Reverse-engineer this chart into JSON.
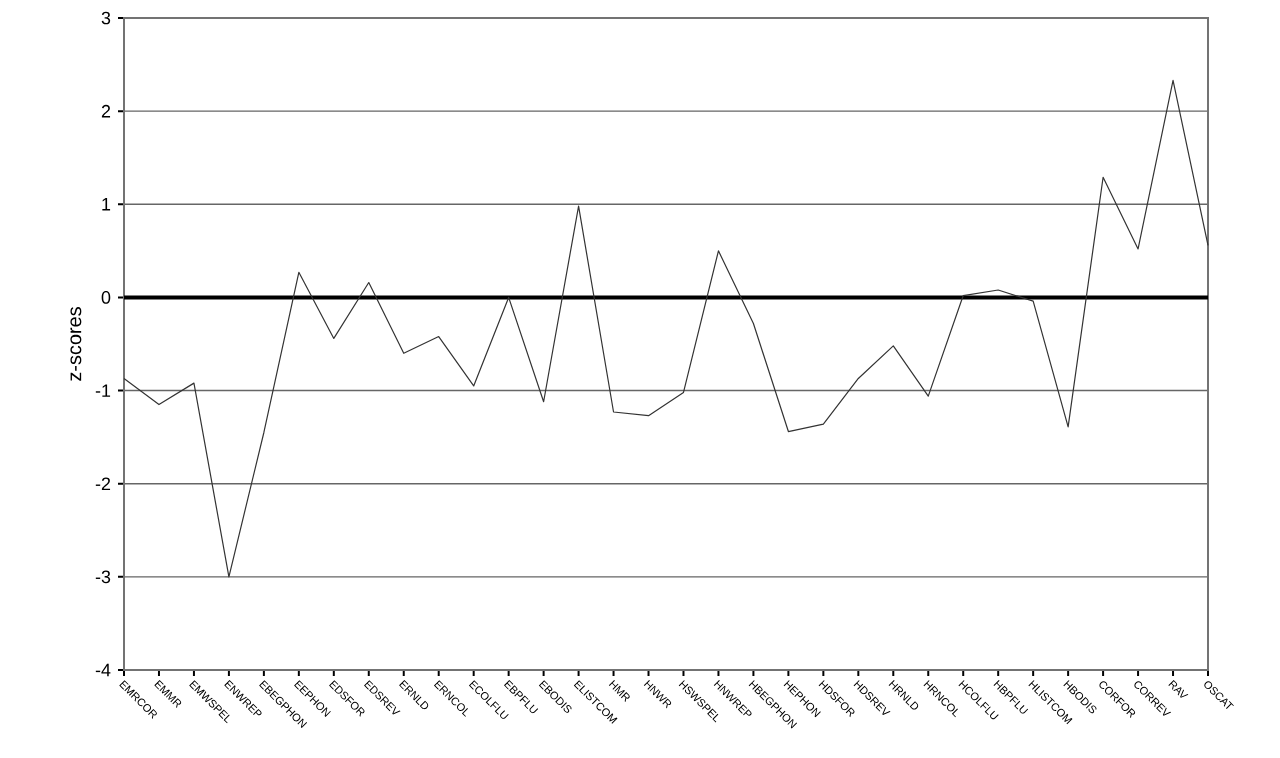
{
  "chart_data": {
    "type": "line",
    "ylabel": "z-scores",
    "categories": [
      "EMRCOR",
      "EMMR",
      "EMWSPEL",
      "ENWREP",
      "EBEGPHON",
      "EEPHON",
      "EDSFOR",
      "EDSREV",
      "ERNLD",
      "ERNCOL",
      "ECOLFLU",
      "EBPFLU",
      "EBODIS",
      "ELISTCOM",
      "HMR",
      "HNWR",
      "HSWSPEL",
      "HNWREP",
      "HBEGPHON",
      "HEPHON",
      "HDSFOR",
      "HDSREV",
      "HRNLD",
      "HRNCOL",
      "HCOLFLU",
      "HBPFLU",
      "HLISTCOM",
      "HBODIS",
      "CORFOR",
      "CORREV",
      "RAV",
      "OSCAT"
    ],
    "series": [
      {
        "color": "#333333",
        "values": [
          -0.87,
          -1.15,
          -0.92,
          -3.0,
          -1.45,
          0.27,
          -0.44,
          0.16,
          -0.6,
          -0.42,
          -0.95,
          0.0,
          -1.12,
          0.98,
          -1.23,
          -1.27,
          -1.02,
          0.5,
          -0.28,
          -1.44,
          -1.36,
          -0.87,
          -0.52,
          -1.06,
          0.02,
          0.08,
          -0.04,
          -1.39,
          1.29,
          0.52,
          2.33,
          0.56
        ]
      }
    ],
    "ylim": [
      -4,
      3
    ],
    "yticks": [
      -4,
      -3,
      -2,
      -1,
      0,
      1,
      2,
      3
    ],
    "grid": "y",
    "marker": "none",
    "line_style": "solid",
    "ref_lines": [
      {
        "axis": "y",
        "value": 0,
        "color": "#000000"
      }
    ]
  }
}
